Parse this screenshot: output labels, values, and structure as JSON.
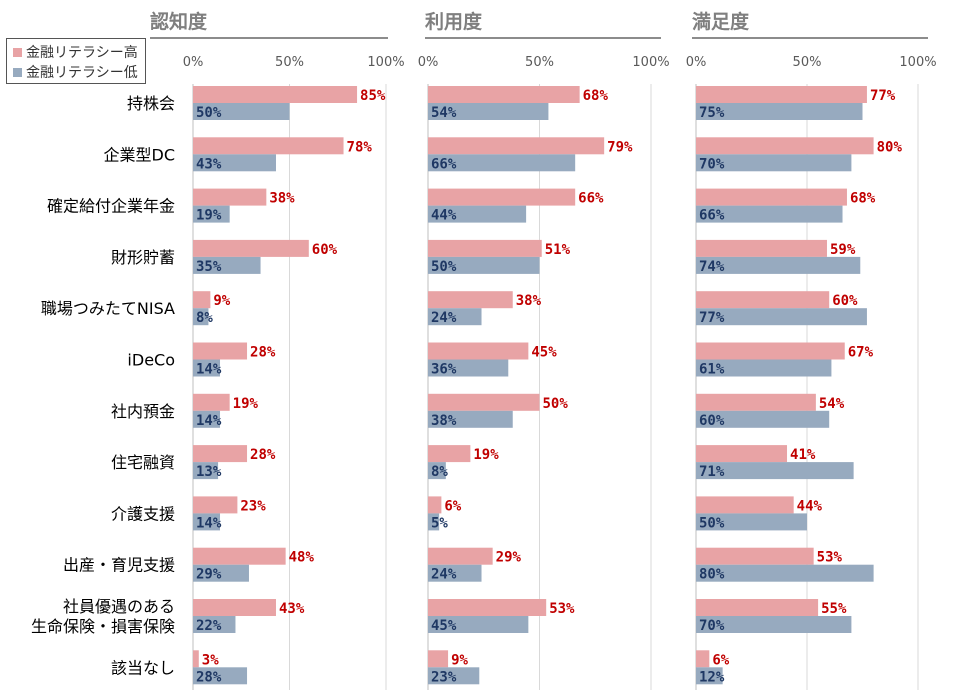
{
  "chart_data": {
    "type": "bar",
    "orientation": "horizontal",
    "categories": [
      "持株会",
      "企業型DC",
      "確定給付企業年金",
      "財形貯蓄",
      "職場つみたてNISA",
      "iDeCo",
      "社内預金",
      "住宅融資",
      "介護支援",
      "出産・育児支援",
      "社員優遇のある\n生命保険・損害保険",
      "該当なし"
    ],
    "legend": [
      {
        "name": "金融リテラシー高",
        "color": "#e8a3a5"
      },
      {
        "name": "金融リテラシー低",
        "color": "#97aabf"
      }
    ],
    "label_colors": {
      "high": "#c00000",
      "low": "#1f3864"
    },
    "ticks": [
      "0%",
      "50%",
      "100%"
    ],
    "xlim": [
      0,
      100
    ],
    "grid": true,
    "panels": [
      {
        "title": "認知度",
        "series": [
          {
            "name": "金融リテラシー高",
            "values": [
              85,
              78,
              38,
              60,
              9,
              28,
              19,
              28,
              23,
              48,
              43,
              3
            ]
          },
          {
            "name": "金融リテラシー低",
            "values": [
              50,
              43,
              19,
              35,
              8,
              14,
              14,
              13,
              14,
              29,
              22,
              28
            ]
          }
        ]
      },
      {
        "title": "利用度",
        "series": [
          {
            "name": "金融リテラシー高",
            "values": [
              68,
              79,
              66,
              51,
              38,
              45,
              50,
              19,
              6,
              29,
              53,
              9
            ]
          },
          {
            "name": "金融リテラシー低",
            "values": [
              54,
              66,
              44,
              50,
              24,
              36,
              38,
              8,
              5,
              24,
              45,
              23
            ]
          }
        ]
      },
      {
        "title": "満足度",
        "series": [
          {
            "name": "金融リテラシー高",
            "values": [
              77,
              80,
              68,
              59,
              60,
              67,
              54,
              41,
              44,
              53,
              55,
              6
            ]
          },
          {
            "name": "金融リテラシー低",
            "values": [
              75,
              70,
              66,
              74,
              77,
              61,
              60,
              71,
              50,
              80,
              70,
              12
            ]
          }
        ]
      }
    ]
  }
}
